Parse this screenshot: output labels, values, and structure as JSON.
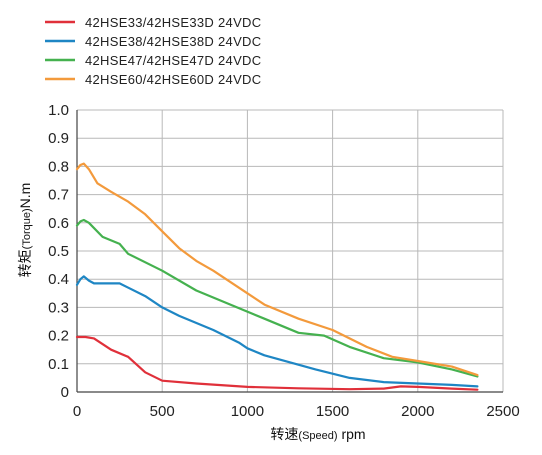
{
  "chart_data": {
    "type": "line",
    "xlabel_main": "转速",
    "xlabel_en": "(Speed)",
    "xlabel_unit": " rpm",
    "ylabel_main": "转矩",
    "ylabel_en": "(Torque)",
    "ylabel_unit": "N.m",
    "xlim": [
      0,
      2500
    ],
    "ylim": [
      0,
      1.0
    ],
    "xticks": [
      0,
      500,
      1000,
      1500,
      2000,
      2500
    ],
    "xtick_labels": [
      "0",
      "500",
      "1000",
      "1500",
      "2000",
      "2500"
    ],
    "yticks": [
      0,
      0.1,
      0.2,
      0.3,
      0.4,
      0.5,
      0.6,
      0.7,
      0.8,
      0.9,
      1.0
    ],
    "ytick_labels": [
      "0",
      "0.1",
      "0.2",
      "0.3",
      "0.4",
      "0.5",
      "0.6",
      "0.7",
      "0.8",
      "0.9",
      "1.0"
    ],
    "grid": true,
    "legend_position": "top-left",
    "series": [
      {
        "name": "42HSE33/42HSE33D  24VDC",
        "color": "#e0303a",
        "points": [
          [
            0,
            0.195
          ],
          [
            50,
            0.195
          ],
          [
            100,
            0.19
          ],
          [
            200,
            0.15
          ],
          [
            300,
            0.125
          ],
          [
            400,
            0.07
          ],
          [
            500,
            0.04
          ],
          [
            700,
            0.03
          ],
          [
            1000,
            0.018
          ],
          [
            1300,
            0.013
          ],
          [
            1600,
            0.01
          ],
          [
            1800,
            0.012
          ],
          [
            1900,
            0.02
          ],
          [
            2000,
            0.018
          ],
          [
            2200,
            0.012
          ],
          [
            2350,
            0.008
          ]
        ]
      },
      {
        "name": "42HSE38/42HSE38D  24VDC",
        "color": "#1e86c4",
        "points": [
          [
            0,
            0.38
          ],
          [
            20,
            0.4
          ],
          [
            40,
            0.41
          ],
          [
            70,
            0.395
          ],
          [
            100,
            0.385
          ],
          [
            250,
            0.385
          ],
          [
            400,
            0.34
          ],
          [
            500,
            0.3
          ],
          [
            600,
            0.27
          ],
          [
            800,
            0.22
          ],
          [
            950,
            0.175
          ],
          [
            1000,
            0.155
          ],
          [
            1100,
            0.13
          ],
          [
            1400,
            0.08
          ],
          [
            1600,
            0.05
          ],
          [
            1800,
            0.035
          ],
          [
            2000,
            0.03
          ],
          [
            2200,
            0.025
          ],
          [
            2350,
            0.02
          ]
        ]
      },
      {
        "name": "42HSE47/42HSE47D  24VDC",
        "color": "#45b14f",
        "points": [
          [
            0,
            0.59
          ],
          [
            20,
            0.605
          ],
          [
            40,
            0.61
          ],
          [
            70,
            0.6
          ],
          [
            150,
            0.55
          ],
          [
            250,
            0.525
          ],
          [
            300,
            0.49
          ],
          [
            500,
            0.43
          ],
          [
            700,
            0.36
          ],
          [
            900,
            0.31
          ],
          [
            1100,
            0.26
          ],
          [
            1300,
            0.21
          ],
          [
            1450,
            0.2
          ],
          [
            1600,
            0.16
          ],
          [
            1800,
            0.12
          ],
          [
            2000,
            0.105
          ],
          [
            2200,
            0.08
          ],
          [
            2350,
            0.055
          ]
        ]
      },
      {
        "name": "42HSE60/42HSE60D  24VDC",
        "color": "#f39a3c",
        "points": [
          [
            0,
            0.79
          ],
          [
            20,
            0.805
          ],
          [
            40,
            0.81
          ],
          [
            70,
            0.79
          ],
          [
            120,
            0.74
          ],
          [
            200,
            0.71
          ],
          [
            300,
            0.675
          ],
          [
            400,
            0.63
          ],
          [
            500,
            0.57
          ],
          [
            600,
            0.51
          ],
          [
            700,
            0.465
          ],
          [
            800,
            0.43
          ],
          [
            1000,
            0.35
          ],
          [
            1100,
            0.31
          ],
          [
            1300,
            0.26
          ],
          [
            1500,
            0.22
          ],
          [
            1700,
            0.16
          ],
          [
            1850,
            0.125
          ],
          [
            2000,
            0.11
          ],
          [
            2200,
            0.09
          ],
          [
            2350,
            0.06
          ]
        ]
      }
    ]
  }
}
